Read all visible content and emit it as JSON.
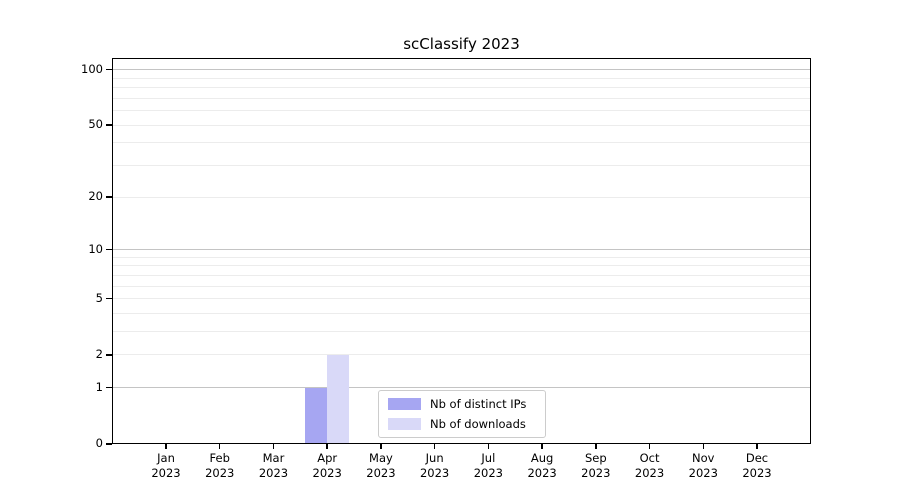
{
  "chart_data": {
    "type": "bar",
    "title": "scClassify 2023",
    "categories": [
      [
        "Jan",
        "2023"
      ],
      [
        "Feb",
        "2023"
      ],
      [
        "Mar",
        "2023"
      ],
      [
        "Apr",
        "2023"
      ],
      [
        "May",
        "2023"
      ],
      [
        "Jun",
        "2023"
      ],
      [
        "Jul",
        "2023"
      ],
      [
        "Aug",
        "2023"
      ],
      [
        "Sep",
        "2023"
      ],
      [
        "Oct",
        "2023"
      ],
      [
        "Nov",
        "2023"
      ],
      [
        "Dec",
        "2023"
      ]
    ],
    "series": [
      {
        "name": "Nb of distinct IPs",
        "color": "#a6a6f2",
        "values": [
          0,
          0,
          0,
          1,
          0,
          0,
          0,
          0,
          0,
          0,
          0,
          0
        ]
      },
      {
        "name": "Nb of downloads",
        "color": "#d9d9f8",
        "values": [
          0,
          0,
          0,
          2,
          0,
          0,
          0,
          0,
          0,
          0,
          0,
          0
        ]
      }
    ],
    "yscale": "log1p",
    "yticks": [
      0,
      1,
      2,
      5,
      10,
      20,
      50,
      100
    ],
    "ylim": [
      0,
      116
    ],
    "grid": "horizontal, log-style minors",
    "legend_position": "lower center inside plot",
    "colors": {
      "major_grid": "#c4c4c4",
      "minor_grid": "#ececec",
      "spine": "#000000",
      "background": "#ffffff",
      "text": "#000000"
    }
  }
}
